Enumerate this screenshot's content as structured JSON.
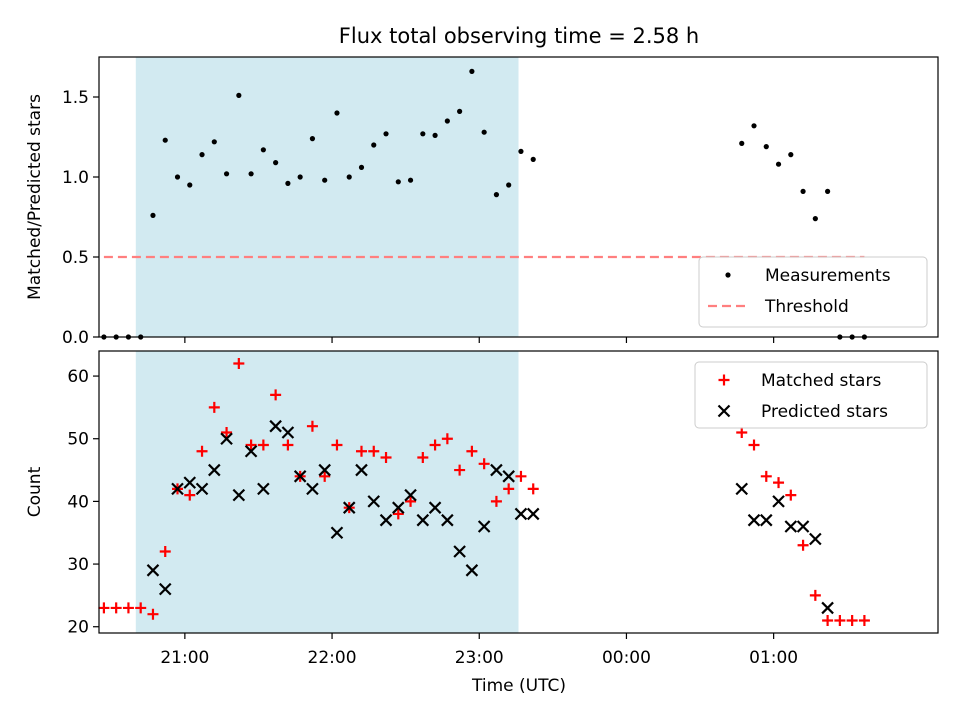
{
  "chart_data": {
    "type": "scatter",
    "title": "Flux total observing time = 2.58 h",
    "xlabel": "Time (UTC)",
    "x_axis": {
      "unit": "hours",
      "range": [
        "20:25",
        "02:07"
      ],
      "ticks": [
        {
          "t": "21:00",
          "label": "21:00"
        },
        {
          "t": "22:00",
          "label": "22:00"
        },
        {
          "t": "23:00",
          "label": "23:00"
        },
        {
          "t": "00:00",
          "label": "00:00"
        },
        {
          "t": "01:00",
          "label": "01:00"
        }
      ]
    },
    "highlight_span": {
      "start": "20:40",
      "end": "23:16",
      "color": "#add8e6"
    },
    "panels": [
      {
        "id": "ratio",
        "ylabel": "Matched/Predicted stars",
        "ylim": [
          0,
          1.75
        ],
        "yticks": [
          0.0,
          0.5,
          1.0,
          1.5
        ],
        "ytick_labels": [
          "0.0",
          "0.5",
          "1.0",
          "1.5"
        ],
        "legend": {
          "position": "lower-right",
          "entries": [
            "Measurements",
            "Threshold"
          ]
        },
        "series": [
          {
            "name": "Measurements",
            "marker": "dot",
            "color": "#000000",
            "points": [
              [
                "20:27",
                0
              ],
              [
                "20:32",
                0
              ],
              [
                "20:37",
                0
              ],
              [
                "20:42",
                0
              ],
              [
                "20:47",
                0.76
              ],
              [
                "20:52",
                1.23
              ],
              [
                "20:57",
                1.0
              ],
              [
                "21:02",
                0.95
              ],
              [
                "21:07",
                1.14
              ],
              [
                "21:12",
                1.22
              ],
              [
                "21:17",
                1.02
              ],
              [
                "21:22",
                1.51
              ],
              [
                "21:27",
                1.02
              ],
              [
                "21:32",
                1.17
              ],
              [
                "21:37",
                1.09
              ],
              [
                "21:42",
                0.96
              ],
              [
                "21:47",
                1.0
              ],
              [
                "21:52",
                1.24
              ],
              [
                "21:57",
                0.98
              ],
              [
                "22:02",
                1.4
              ],
              [
                "22:07",
                1.0
              ],
              [
                "22:12",
                1.06
              ],
              [
                "22:17",
                1.2
              ],
              [
                "22:22",
                1.27
              ],
              [
                "22:27",
                0.97
              ],
              [
                "22:32",
                0.98
              ],
              [
                "22:37",
                1.27
              ],
              [
                "22:42",
                1.26
              ],
              [
                "22:47",
                1.35
              ],
              [
                "22:52",
                1.41
              ],
              [
                "22:57",
                1.66
              ],
              [
                "23:02",
                1.28
              ],
              [
                "23:07",
                0.89
              ],
              [
                "23:12",
                0.95
              ],
              [
                "23:17",
                1.16
              ],
              [
                "23:22",
                1.11
              ],
              [
                "00:47",
                1.21
              ],
              [
                "00:52",
                1.32
              ],
              [
                "00:57",
                1.19
              ],
              [
                "01:02",
                1.08
              ],
              [
                "01:07",
                1.14
              ],
              [
                "01:12",
                0.91
              ],
              [
                "01:17",
                0.74
              ],
              [
                "01:22",
                0.91
              ],
              [
                "01:27",
                0
              ],
              [
                "01:32",
                0
              ],
              [
                "01:37",
                0
              ]
            ]
          },
          {
            "name": "Threshold",
            "style": "dashed",
            "color": "#ff7f7f",
            "points": [
              [
                "20:27",
                0.5
              ],
              [
                "01:37",
                0.5
              ]
            ]
          }
        ]
      },
      {
        "id": "counts",
        "ylabel": "Count",
        "ylim": [
          19,
          64
        ],
        "yticks": [
          20,
          30,
          40,
          50,
          60
        ],
        "ytick_labels": [
          "20",
          "30",
          "40",
          "50",
          "60"
        ],
        "legend": {
          "position": "top-right",
          "entries": [
            "Matched stars",
            "Predicted stars"
          ]
        },
        "series": [
          {
            "name": "Matched stars",
            "marker": "plus",
            "color": "#ff0000",
            "points": [
              [
                "20:27",
                23
              ],
              [
                "20:32",
                23
              ],
              [
                "20:37",
                23
              ],
              [
                "20:42",
                23
              ],
              [
                "20:47",
                22
              ],
              [
                "20:52",
                32
              ],
              [
                "20:57",
                42
              ],
              [
                "21:02",
                41
              ],
              [
                "21:07",
                48
              ],
              [
                "21:12",
                55
              ],
              [
                "21:17",
                51
              ],
              [
                "21:22",
                62
              ],
              [
                "21:27",
                49
              ],
              [
                "21:32",
                49
              ],
              [
                "21:37",
                57
              ],
              [
                "21:42",
                49
              ],
              [
                "21:47",
                44
              ],
              [
                "21:52",
                52
              ],
              [
                "21:57",
                44
              ],
              [
                "22:02",
                49
              ],
              [
                "22:07",
                39
              ],
              [
                "22:12",
                48
              ],
              [
                "22:17",
                48
              ],
              [
                "22:22",
                47
              ],
              [
                "22:27",
                38
              ],
              [
                "22:32",
                40
              ],
              [
                "22:37",
                47
              ],
              [
                "22:42",
                49
              ],
              [
                "22:47",
                50
              ],
              [
                "22:52",
                45
              ],
              [
                "22:57",
                48
              ],
              [
                "23:02",
                46
              ],
              [
                "23:07",
                40
              ],
              [
                "23:12",
                42
              ],
              [
                "23:17",
                44
              ],
              [
                "23:22",
                42
              ],
              [
                "00:47",
                51
              ],
              [
                "00:52",
                49
              ],
              [
                "00:57",
                44
              ],
              [
                "01:02",
                43
              ],
              [
                "01:07",
                41
              ],
              [
                "01:12",
                33
              ],
              [
                "01:17",
                25
              ],
              [
                "01:22",
                21
              ],
              [
                "01:27",
                21
              ],
              [
                "01:32",
                21
              ],
              [
                "01:37",
                21
              ]
            ]
          },
          {
            "name": "Predicted stars",
            "marker": "x",
            "color": "#000000",
            "points": [
              [
                "20:47",
                29
              ],
              [
                "20:52",
                26
              ],
              [
                "20:57",
                42
              ],
              [
                "21:02",
                43
              ],
              [
                "21:07",
                42
              ],
              [
                "21:12",
                45
              ],
              [
                "21:17",
                50
              ],
              [
                "21:22",
                41
              ],
              [
                "21:27",
                48
              ],
              [
                "21:32",
                42
              ],
              [
                "21:37",
                52
              ],
              [
                "21:42",
                51
              ],
              [
                "21:47",
                44
              ],
              [
                "21:52",
                42
              ],
              [
                "21:57",
                45
              ],
              [
                "22:02",
                35
              ],
              [
                "22:07",
                39
              ],
              [
                "22:12",
                45
              ],
              [
                "22:17",
                40
              ],
              [
                "22:22",
                37
              ],
              [
                "22:27",
                39
              ],
              [
                "22:32",
                41
              ],
              [
                "22:37",
                37
              ],
              [
                "22:42",
                39
              ],
              [
                "22:47",
                37
              ],
              [
                "22:52",
                32
              ],
              [
                "22:57",
                29
              ],
              [
                "23:02",
                36
              ],
              [
                "23:07",
                45
              ],
              [
                "23:12",
                44
              ],
              [
                "23:17",
                38
              ],
              [
                "23:22",
                38
              ],
              [
                "00:47",
                42
              ],
              [
                "00:52",
                37
              ],
              [
                "00:57",
                37
              ],
              [
                "01:02",
                40
              ],
              [
                "01:07",
                36
              ],
              [
                "01:12",
                36
              ],
              [
                "01:17",
                34
              ],
              [
                "01:22",
                23
              ]
            ]
          }
        ]
      }
    ]
  }
}
